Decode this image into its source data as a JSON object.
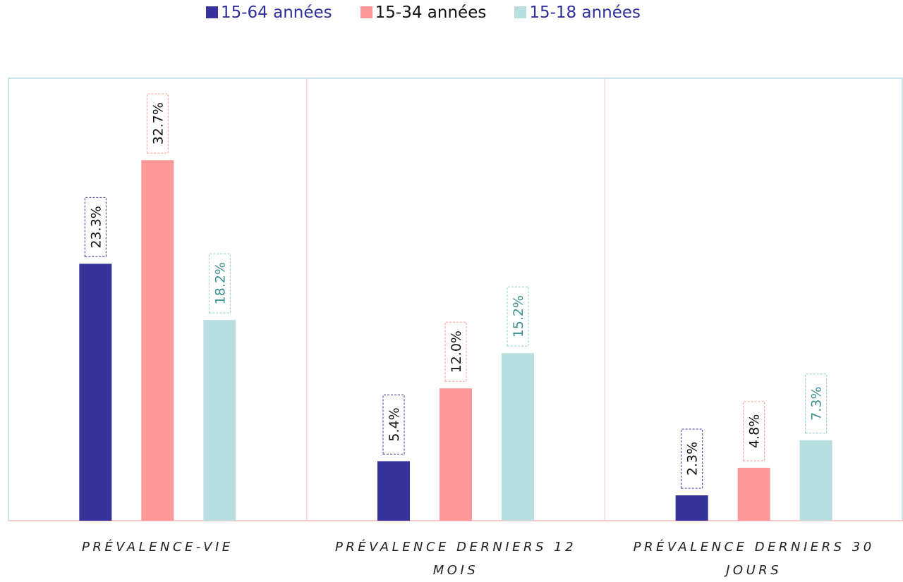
{
  "chart_data": {
    "type": "bar",
    "categories": [
      "PRÉVALENCE-VIE",
      "PRÉVALENCE DERNIERS 12 MOIS",
      "PRÉVALENCE DERNIERS 30 JOURS"
    ],
    "series": [
      {
        "name": "15-64 années",
        "color": "#36349a",
        "values": [
          23.3,
          5.4,
          2.3
        ],
        "value_labels": [
          "23.3%",
          "5.4%",
          "2.3%"
        ]
      },
      {
        "name": "15-34 années",
        "color": "#fe9898",
        "values": [
          32.7,
          12.0,
          4.8
        ],
        "value_labels": [
          "32.7%",
          "12.0%",
          "4.8%"
        ]
      },
      {
        "name": "15-18 années",
        "color": "#b8dfe0",
        "values": [
          18.2,
          15.2,
          7.3
        ],
        "value_labels": [
          "18.2%",
          "15.2%",
          "7.3%"
        ]
      }
    ],
    "ylim": [
      0,
      40
    ],
    "legend": "top"
  }
}
